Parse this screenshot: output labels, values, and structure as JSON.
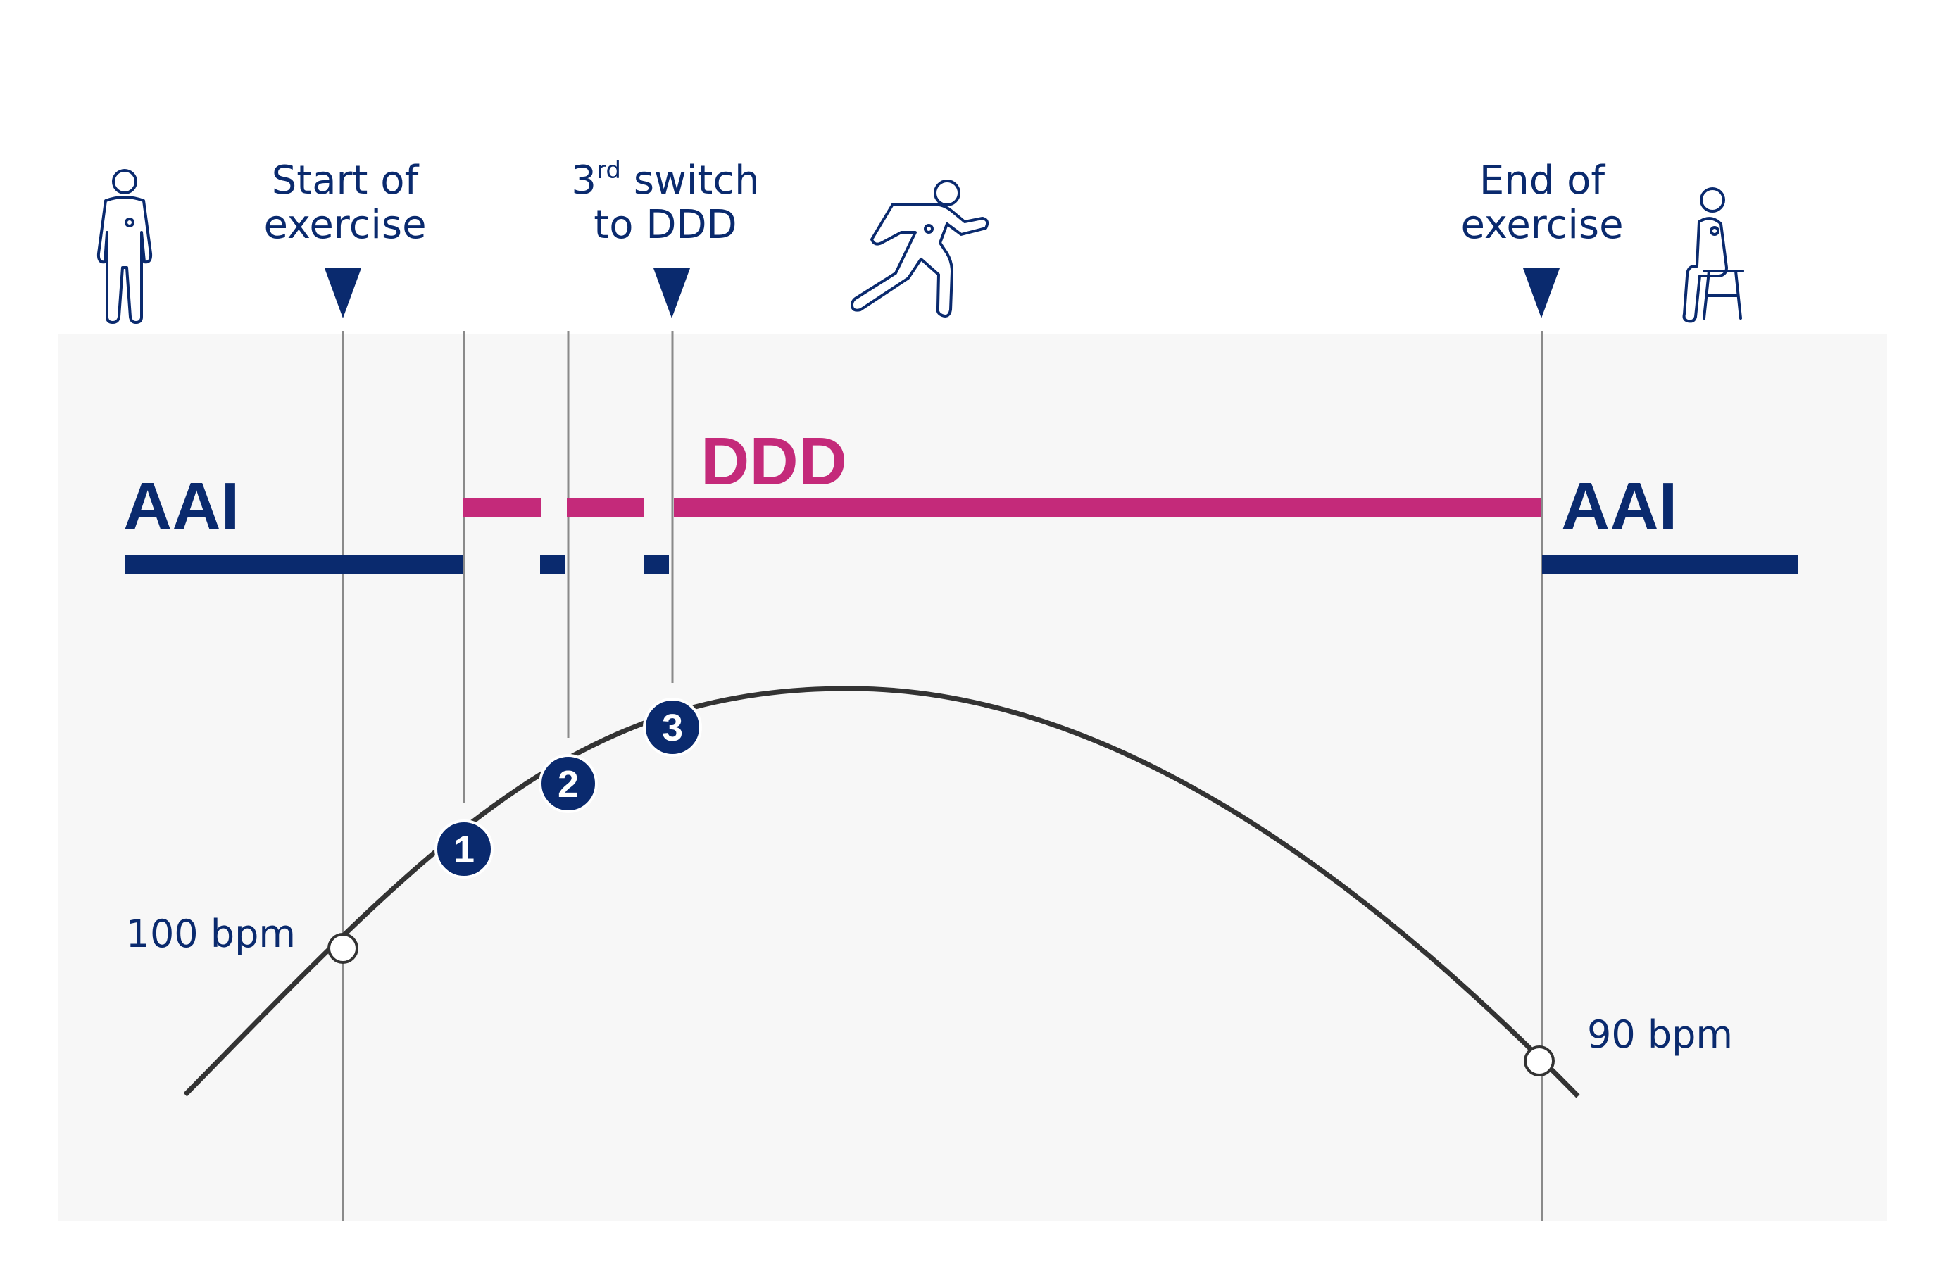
{
  "colors": {
    "navy": "#0a2a6e",
    "magenta": "#c42a7a",
    "curve": "#333333",
    "panel": "#f7f7f7",
    "guide": "#8a8a8a"
  },
  "markers": {
    "start": {
      "line1": "Start of",
      "line2": "exercise"
    },
    "switch": {
      "sup_base": "3",
      "sup": "rd",
      "rest": " switch",
      "line2": "to DDD"
    },
    "end": {
      "line1": "End of",
      "line2": "exercise"
    }
  },
  "modes": {
    "left": "AAI",
    "middle": "DDD",
    "right": "AAI"
  },
  "switch_points": [
    "1",
    "2",
    "3"
  ],
  "heart_rate": {
    "start": "100 bpm",
    "end": "90 bpm"
  },
  "icons": {
    "standing": "standing-person-icon",
    "running": "running-person-icon",
    "sitting": "sitting-person-icon"
  }
}
